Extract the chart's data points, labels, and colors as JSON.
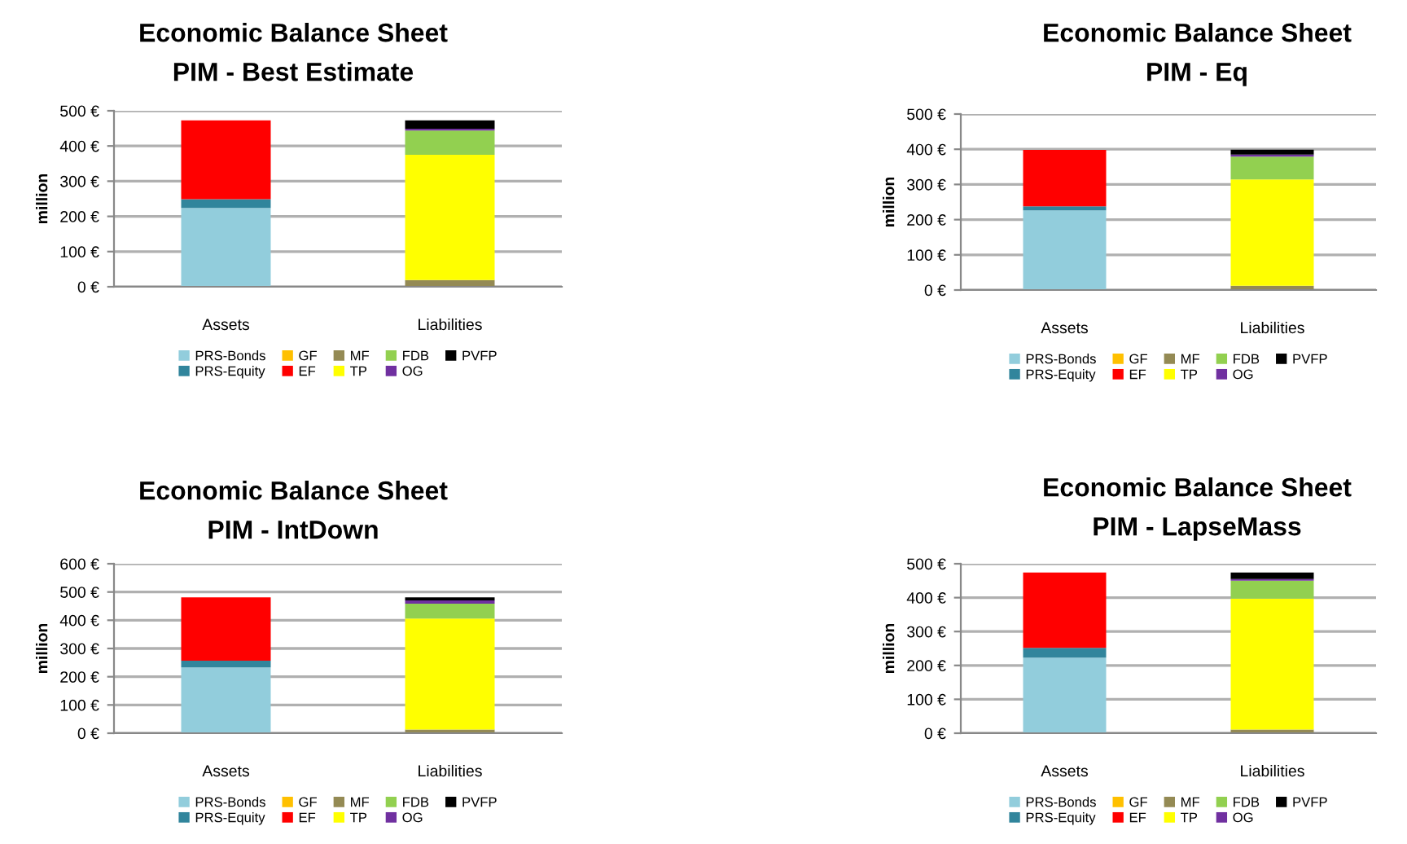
{
  "chart_data": [
    {
      "type": "bar",
      "stacked": true,
      "title": "Economic Balance Sheet",
      "subtitle": "PIM - Best Estimate",
      "ylabel": "million",
      "categories": [
        "Assets",
        "Liabilities"
      ],
      "ylim": [
        0,
        500
      ],
      "yticks": [
        {
          "value": 0,
          "label": "0 €"
        },
        {
          "value": 100,
          "label": "100 €"
        },
        {
          "value": 200,
          "label": "200 €"
        },
        {
          "value": 300,
          "label": "300 €"
        },
        {
          "value": 400,
          "label": "400 €"
        },
        {
          "value": 500,
          "label": "500 €"
        }
      ],
      "grid": "y",
      "legend": "bottom",
      "series": [
        {
          "name": "PRS-Bonds",
          "color": "#92cddc",
          "values": [
            224,
            null
          ]
        },
        {
          "name": "PRS-Equity",
          "color": "#31859c",
          "values": [
            25,
            null
          ]
        },
        {
          "name": "GF",
          "color": "#ffc000",
          "values": [
            null,
            null
          ]
        },
        {
          "name": "EF",
          "color": "#ff0000",
          "values": [
            224,
            null
          ]
        },
        {
          "name": "MF",
          "color": "#948a54",
          "values": [
            null,
            19
          ]
        },
        {
          "name": "TP",
          "color": "#ffff00",
          "values": [
            null,
            356
          ]
        },
        {
          "name": "FDB",
          "color": "#92d050",
          "values": [
            null,
            69
          ]
        },
        {
          "name": "OG",
          "color": "#7030a0",
          "values": [
            null,
            5
          ]
        },
        {
          "name": "PVFP",
          "color": "#000000",
          "values": [
            null,
            24
          ]
        }
      ]
    },
    {
      "type": "bar",
      "stacked": true,
      "title": "Economic Balance Sheet",
      "subtitle": "PIM - Eq",
      "ylabel": "million",
      "categories": [
        "Assets",
        "Liabilities"
      ],
      "ylim": [
        0,
        500
      ],
      "yticks": [
        {
          "value": 0,
          "label": "0 €"
        },
        {
          "value": 100,
          "label": "100 €"
        },
        {
          "value": 200,
          "label": "200 €"
        },
        {
          "value": 300,
          "label": "300 €"
        },
        {
          "value": 400,
          "label": "400 €"
        },
        {
          "value": 500,
          "label": "500 €"
        }
      ],
      "grid": "y",
      "legend": "bottom",
      "series": [
        {
          "name": "PRS-Bonds",
          "color": "#92cddc",
          "values": [
            226,
            null
          ]
        },
        {
          "name": "PRS-Equity",
          "color": "#31859c",
          "values": [
            12,
            null
          ]
        },
        {
          "name": "GF",
          "color": "#ffc000",
          "values": [
            null,
            null
          ]
        },
        {
          "name": "EF",
          "color": "#ff0000",
          "values": [
            160,
            null
          ]
        },
        {
          "name": "MF",
          "color": "#948a54",
          "values": [
            null,
            12
          ]
        },
        {
          "name": "TP",
          "color": "#ffff00",
          "values": [
            null,
            302
          ]
        },
        {
          "name": "FDB",
          "color": "#92d050",
          "values": [
            null,
            65
          ]
        },
        {
          "name": "OG",
          "color": "#7030a0",
          "values": [
            null,
            6
          ]
        },
        {
          "name": "PVFP",
          "color": "#000000",
          "values": [
            null,
            14
          ]
        }
      ]
    },
    {
      "type": "bar",
      "stacked": true,
      "title": "Economic Balance Sheet",
      "subtitle": "PIM - IntDown",
      "ylabel": "million",
      "categories": [
        "Assets",
        "Liabilities"
      ],
      "ylim": [
        0,
        600
      ],
      "yticks": [
        {
          "value": 0,
          "label": "0 €"
        },
        {
          "value": 100,
          "label": "100 €"
        },
        {
          "value": 200,
          "label": "200 €"
        },
        {
          "value": 300,
          "label": "300 €"
        },
        {
          "value": 400,
          "label": "400 €"
        },
        {
          "value": 500,
          "label": "500 €"
        },
        {
          "value": 600,
          "label": "600 €"
        }
      ],
      "grid": "y",
      "legend": "bottom",
      "series": [
        {
          "name": "PRS-Bonds",
          "color": "#92cddc",
          "values": [
            233,
            null
          ]
        },
        {
          "name": "PRS-Equity",
          "color": "#31859c",
          "values": [
            24,
            null
          ]
        },
        {
          "name": "GF",
          "color": "#ffc000",
          "values": [
            null,
            null
          ]
        },
        {
          "name": "EF",
          "color": "#ff0000",
          "values": [
            224,
            null
          ]
        },
        {
          "name": "MF",
          "color": "#948a54",
          "values": [
            null,
            13
          ]
        },
        {
          "name": "TP",
          "color": "#ffff00",
          "values": [
            null,
            393
          ]
        },
        {
          "name": "FDB",
          "color": "#92d050",
          "values": [
            null,
            53
          ]
        },
        {
          "name": "OG",
          "color": "#7030a0",
          "values": [
            null,
            11
          ]
        },
        {
          "name": "PVFP",
          "color": "#000000",
          "values": [
            null,
            11
          ]
        }
      ]
    },
    {
      "type": "bar",
      "stacked": true,
      "title": "Economic Balance Sheet",
      "subtitle": "PIM - LapseMass",
      "ylabel": "million",
      "categories": [
        "Assets",
        "Liabilities"
      ],
      "ylim": [
        0,
        500
      ],
      "yticks": [
        {
          "value": 0,
          "label": "0 €"
        },
        {
          "value": 100,
          "label": "100 €"
        },
        {
          "value": 200,
          "label": "200 €"
        },
        {
          "value": 300,
          "label": "300 €"
        },
        {
          "value": 400,
          "label": "400 €"
        },
        {
          "value": 500,
          "label": "500 €"
        }
      ],
      "grid": "y",
      "legend": "bottom",
      "series": [
        {
          "name": "PRS-Bonds",
          "color": "#92cddc",
          "values": [
            223,
            null
          ]
        },
        {
          "name": "PRS-Equity",
          "color": "#31859c",
          "values": [
            29,
            null
          ]
        },
        {
          "name": "GF",
          "color": "#ffc000",
          "values": [
            null,
            null
          ]
        },
        {
          "name": "EF",
          "color": "#ff0000",
          "values": [
            222,
            null
          ]
        },
        {
          "name": "MF",
          "color": "#948a54",
          "values": [
            null,
            11
          ]
        },
        {
          "name": "TP",
          "color": "#ffff00",
          "values": [
            null,
            386
          ]
        },
        {
          "name": "FDB",
          "color": "#92d050",
          "values": [
            null,
            53
          ]
        },
        {
          "name": "OG",
          "color": "#7030a0",
          "values": [
            null,
            5
          ]
        },
        {
          "name": "PVFP",
          "color": "#000000",
          "values": [
            null,
            19
          ]
        }
      ]
    }
  ]
}
